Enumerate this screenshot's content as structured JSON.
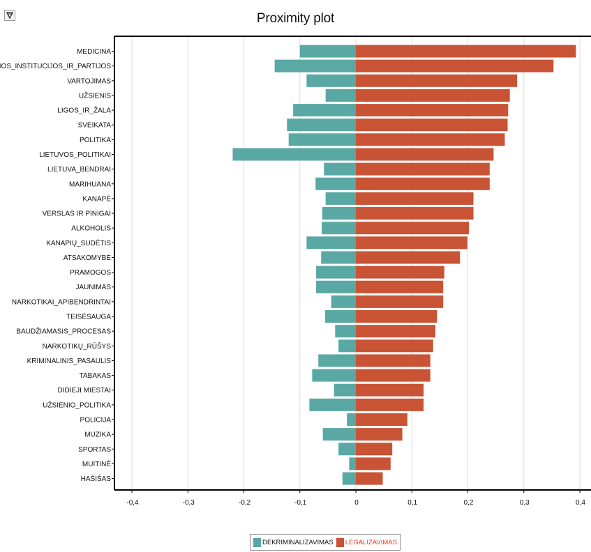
{
  "toolbar": {
    "filter_icon": "filter-icon"
  },
  "colors": {
    "dekriminalizavimas": "#5aa8a4",
    "legalizavimas": "#c95335",
    "grid": "#dcdcdc",
    "axis": "#000000"
  },
  "chart_data": {
    "type": "bar",
    "orientation": "horizontal",
    "title": "Proximity plot",
    "xlim": [
      -0.4,
      0.4
    ],
    "xticks": [
      "-0,4",
      "-0,3",
      "-0,2",
      "-0,1",
      "0",
      "0,1",
      "0,2",
      "0,3",
      "0,4"
    ],
    "xtick_values": [
      -0.4,
      -0.3,
      -0.2,
      -0.1,
      0,
      0.1,
      0.2,
      0.3,
      0.4
    ],
    "grid": true,
    "legend_position": "bottom",
    "categories": [
      "MEDICINA",
      "VALDŽIOS_INSTITUCIJOS_IR_PARTIJOS",
      "VARTOJIMAS",
      "UŽSIENIS",
      "LIGOS_IR_ŽALA",
      "SVEIKATA",
      "POLITIKA",
      "LIETUVOS_POLITIKAI",
      "LIETUVA_BENDRAI",
      "MARIHUANA",
      "KANAPĖ",
      "VERSLAS IR PINIGAI",
      "ALKOHOLIS",
      "KANAPIŲ_SUDĖTIS",
      "ATSAKOMYBĖ",
      "PRAMOGOS",
      "JAUNIMAS",
      "NARKOTIKAI_APIBENDRINTAI",
      "TEISĖSAUGA",
      "BAUDŽIAMASIS_PROCESAS",
      "NARKOTIKŲ_RŪŠYS",
      "KRIMINALINIS_PASAULIS",
      "TABAKAS",
      "DIDIEJI MIESTAI",
      "UŽSIENIO_POLITIKA",
      "POLICIJA",
      "MUZIKA",
      "SPORTAS",
      "MUITINĖ",
      "HAŠIŠAS"
    ],
    "series": [
      {
        "name": "DEKRIMINALIZAVIMAS",
        "color": "#5aa8a4",
        "values": [
          -0.1,
          -0.145,
          -0.088,
          -0.054,
          -0.112,
          -0.123,
          -0.12,
          -0.22,
          -0.057,
          -0.072,
          -0.054,
          -0.06,
          -0.061,
          -0.088,
          -0.062,
          -0.071,
          -0.071,
          -0.044,
          -0.055,
          -0.037,
          -0.031,
          -0.067,
          -0.078,
          -0.039,
          -0.083,
          -0.016,
          -0.059,
          -0.031,
          -0.012,
          -0.024
        ]
      },
      {
        "name": "LEGALIZAVIMAS",
        "color": "#c95335",
        "values": [
          0.393,
          0.353,
          0.288,
          0.275,
          0.272,
          0.271,
          0.266,
          0.246,
          0.239,
          0.239,
          0.21,
          0.21,
          0.202,
          0.199,
          0.186,
          0.158,
          0.156,
          0.156,
          0.145,
          0.142,
          0.138,
          0.133,
          0.133,
          0.121,
          0.121,
          0.092,
          0.083,
          0.065,
          0.062,
          0.048
        ]
      }
    ]
  }
}
